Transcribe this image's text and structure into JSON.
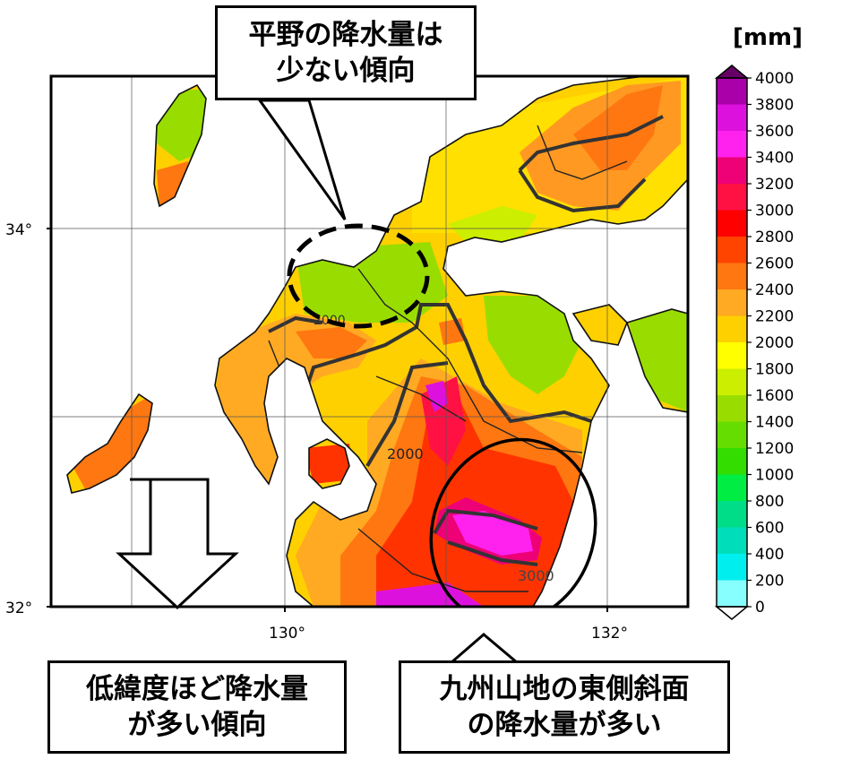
{
  "unit_label": "[mm]",
  "colorbar": {
    "labels": [
      "4000",
      "3800",
      "3600",
      "3400",
      "3200",
      "3000",
      "2800",
      "2600",
      "2400",
      "2200",
      "2000",
      "1800",
      "1600",
      "1400",
      "1200",
      "1000",
      "800",
      "600",
      "400",
      "200",
      "0"
    ],
    "colors": [
      "#660066",
      "#aa00aa",
      "#dd11dd",
      "#ff22ee",
      "#ee0077",
      "#ff1144",
      "#ff0000",
      "#ff4400",
      "#ff7711",
      "#ffaa22",
      "#ffd000",
      "#ffff00",
      "#ccee00",
      "#99dd00",
      "#66dd00",
      "#33dd00",
      "#00ee44",
      "#00dd88",
      "#00ddbb",
      "#00eeee",
      "#88ffff"
    ]
  },
  "axes": {
    "lat_labels": [
      "34°",
      "32°"
    ],
    "lon_labels": [
      "130°",
      "132°"
    ]
  },
  "contour_labels": [
    "2000",
    "2000",
    "3000"
  ],
  "callouts": {
    "top": {
      "line1": "平野の降水量は",
      "line2": "少ない傾向"
    },
    "bottom_left": {
      "line1": "低緯度ほど降水量",
      "line2": "が多い傾向"
    },
    "bottom_right": {
      "line1": "九州山地の東側斜面",
      "line2": "の降水量が多い"
    }
  }
}
